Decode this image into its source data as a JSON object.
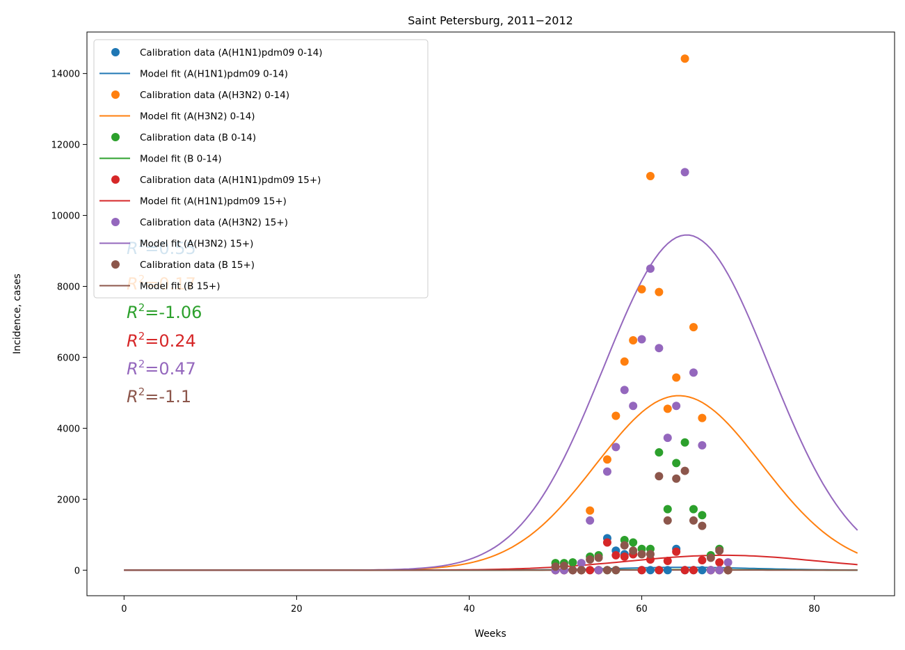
{
  "chart_data": {
    "type": "scatter",
    "title": "Saint Petersburg, 2011−2012",
    "xlabel": "Weeks",
    "ylabel": "Incidence, cases",
    "xlim": [
      -4.3,
      89.3
    ],
    "ylim": [
      -720,
      15170
    ],
    "xticks": [
      0,
      20,
      40,
      60,
      80
    ],
    "yticks": [
      0,
      2000,
      4000,
      6000,
      8000,
      10000,
      12000,
      14000
    ],
    "legend_position": "upper-left",
    "grid": false,
    "weeks": [
      50,
      51,
      52,
      53,
      54,
      55,
      56,
      57,
      58,
      59,
      60,
      61,
      62,
      63,
      64,
      65,
      66,
      67,
      68,
      69,
      70
    ],
    "series": [
      {
        "key": "h1n1_child",
        "color": "#1f77b4",
        "scatter_label": "Calibration data (A(H1N1)pdm09 0-14)",
        "line_label": "Model fit (A(H1N1)pdm09 0-14)",
        "r2": "0.55",
        "points": [
          0,
          0,
          0,
          0,
          0,
          0,
          900,
          550,
          450,
          450,
          0,
          0,
          0,
          0,
          600,
          0,
          0,
          0,
          0,
          0,
          0
        ],
        "curve": {
          "peak": 80,
          "center": 65,
          "width": 8
        }
      },
      {
        "key": "h3n2_child",
        "color": "#ff7f0e",
        "scatter_label": "Calibration data (A(H3N2) 0-14)",
        "line_label": "Model fit (A(H3N2) 0-14)",
        "r2": "0.17",
        "points": [
          0,
          0,
          0,
          0,
          1680,
          0,
          3120,
          4350,
          5880,
          6480,
          7920,
          11110,
          7840,
          4550,
          5430,
          14420,
          6850,
          4290,
          0,
          0,
          0
        ],
        "curve": {
          "peak": 4920,
          "center": 64.3,
          "width": 9.6
        }
      },
      {
        "key": "b_child",
        "color": "#2ca02c",
        "scatter_label": "Calibration data (B 0-14)",
        "line_label": "Model fit (B 0-14)",
        "r2": "-1.06",
        "points": [
          200,
          200,
          220,
          0,
          380,
          420,
          0,
          0,
          850,
          780,
          600,
          600,
          3320,
          1720,
          3020,
          3600,
          1720,
          1550,
          420,
          600,
          0
        ],
        "curve": {
          "peak": 15,
          "center": 65,
          "width": 9
        }
      },
      {
        "key": "h1n1_adult",
        "color": "#d62728",
        "scatter_label": "Calibration data (A(H1N1)pdm09 15+)",
        "line_label": "Model fit (A(H1N1)pdm09 15+)",
        "r2": "0.24",
        "points": [
          0,
          0,
          0,
          0,
          0,
          0,
          780,
          420,
          380,
          450,
          0,
          300,
          0,
          260,
          520,
          0,
          0,
          280,
          0,
          220,
          0
        ],
        "curve": {
          "peak": 420,
          "center": 69.5,
          "width": 11
        }
      },
      {
        "key": "h3n2_adult",
        "color": "#9467bd",
        "scatter_label": "Calibration data (A(H3N2) 15+)",
        "line_label": "Model fit (A(H3N2) 15+)",
        "r2": "0.47",
        "points": [
          0,
          0,
          0,
          200,
          1400,
          0,
          2780,
          3470,
          5080,
          4630,
          6510,
          8500,
          6260,
          3730,
          4630,
          11220,
          5570,
          3520,
          0,
          0,
          220
        ],
        "curve": {
          "peak": 9450,
          "center": 65.2,
          "width": 9.6
        }
      },
      {
        "key": "b_adult",
        "color": "#8c564b",
        "scatter_label": "Calibration data (B 15+)",
        "line_label": "Model fit (B 15+)",
        "r2": "-1.1",
        "points": [
          100,
          120,
          0,
          0,
          300,
          350,
          0,
          0,
          700,
          550,
          450,
          450,
          2650,
          1400,
          2580,
          2800,
          1400,
          1250,
          350,
          550,
          0
        ],
        "curve": {
          "peak": 5,
          "center": 65,
          "width": 9
        }
      }
    ]
  }
}
